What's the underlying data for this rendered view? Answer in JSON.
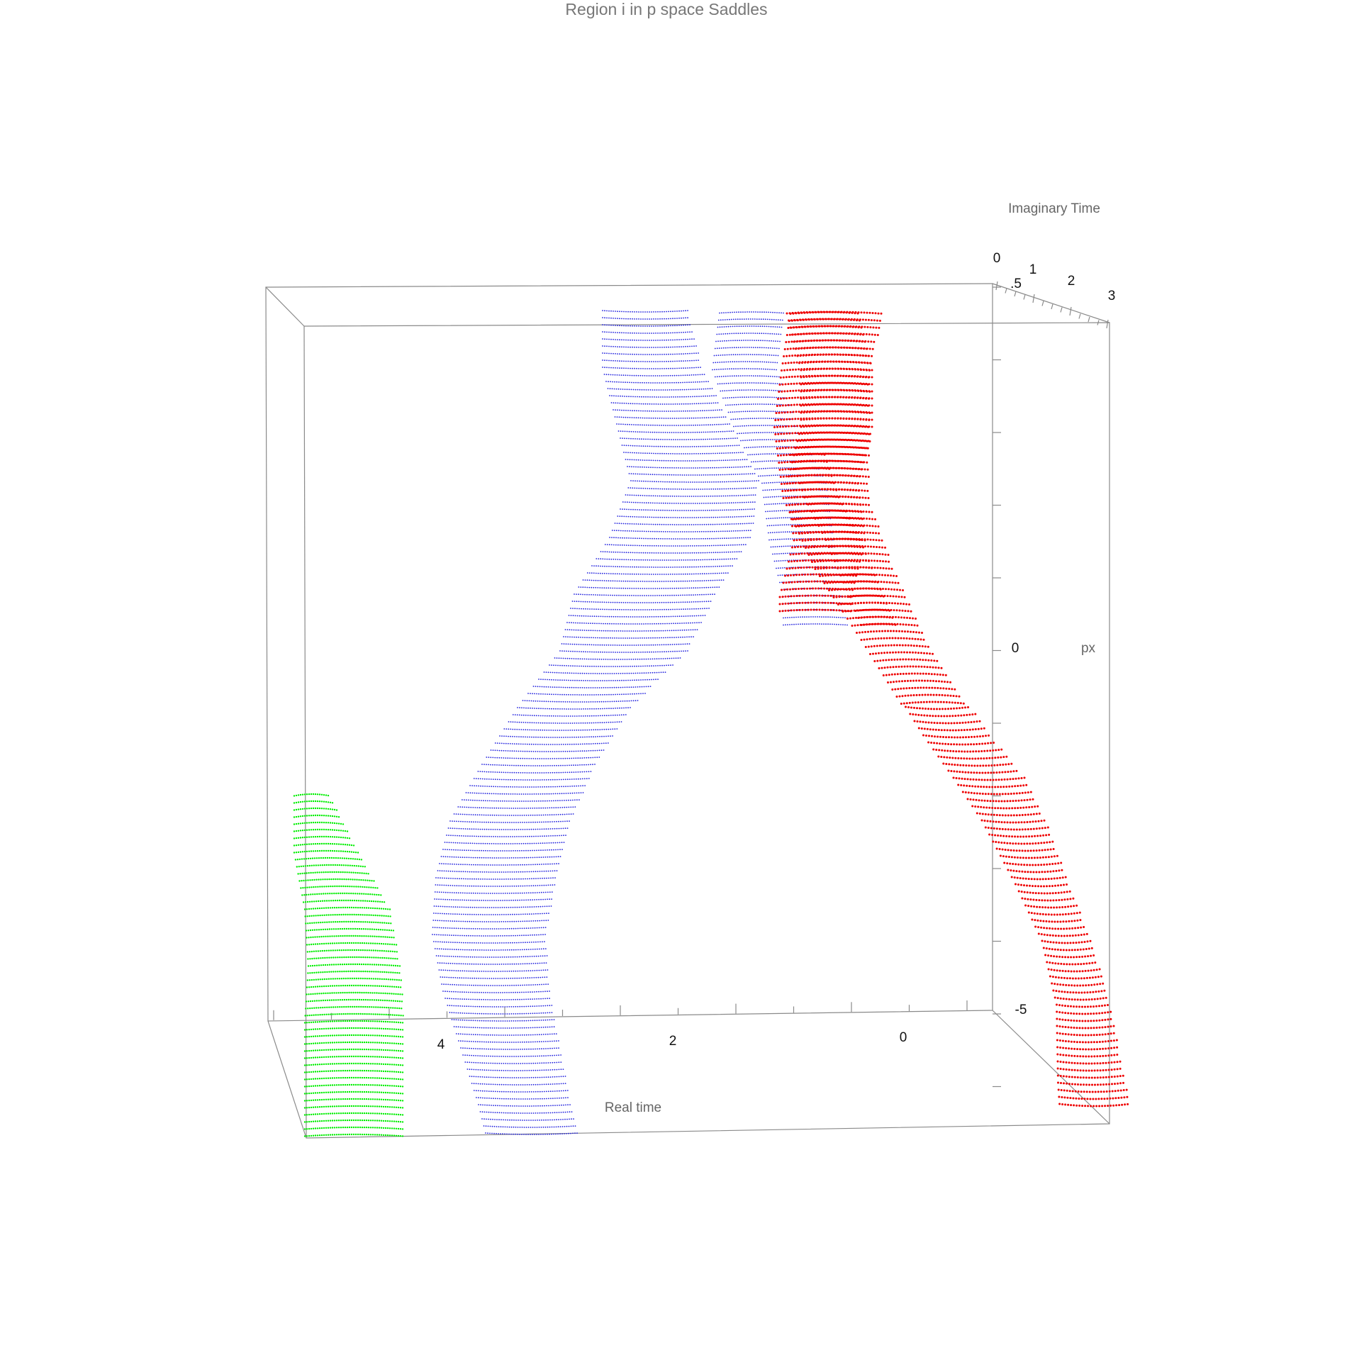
{
  "chart_data": {
    "type": "scatter",
    "title": "Region i in p space Saddles",
    "axes": {
      "x": {
        "label": "Real time",
        "ticks": [
          "4",
          "2",
          "0"
        ],
        "range": [
          -0.8,
          5.5
        ]
      },
      "y": {
        "label": "px",
        "ticks": [
          "0",
          "-5"
        ],
        "range": [
          -7.0,
          7.0
        ]
      },
      "z": {
        "label": "Imaginary Time",
        "ticks": [
          "0",
          ".5",
          "1",
          "2",
          "3"
        ],
        "range": [
          0,
          3
        ]
      }
    },
    "grid": false,
    "series": [
      {
        "color": "#00ee00",
        "real_time_range": [
          4.4,
          5.3
        ],
        "px_range": [
          -7.2,
          -4.5
        ],
        "imag_time_range": [
          0,
          1
        ]
      },
      {
        "color": "#2222dd",
        "real_time_range": [
          1.2,
          5.1
        ],
        "px_range": [
          -7.2,
          5.8
        ],
        "imag_time_range": [
          0,
          2
        ]
      },
      {
        "color": "#ee0000",
        "real_time_range": [
          -1.5,
          1.7
        ],
        "px_range": [
          -7.0,
          5.8
        ],
        "imag_time_range": [
          0,
          3
        ]
      }
    ]
  }
}
